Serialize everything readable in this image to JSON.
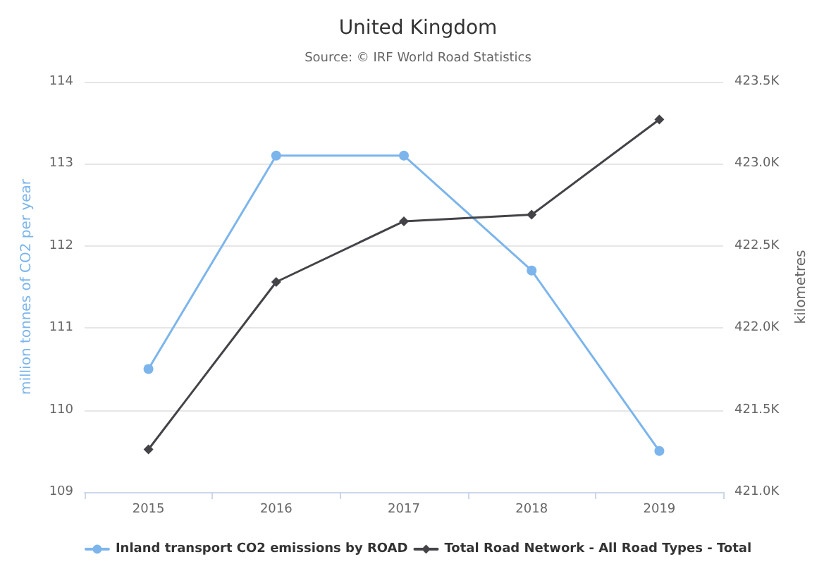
{
  "chart_data": {
    "type": "line",
    "title": "United Kingdom",
    "subtitle": "Source: © IRF World Road Statistics",
    "ylabel": "million tonnes of CO2 per year",
    "y2label": "kilometres",
    "categories": [
      "2015",
      "2016",
      "2017",
      "2018",
      "2019"
    ],
    "series": [
      {
        "name": "Inland transport CO2 emissions by ROAD",
        "color": "#7cb5ec",
        "marker": "circle",
        "values": [
          110.5,
          113.1,
          113.1,
          111.7,
          109.5
        ]
      },
      {
        "name": "Total Road Network - All Road Types - Total",
        "color": "#434348",
        "marker": "diamond",
        "axis": "y2",
        "values": [
          421260,
          422280,
          422650,
          422690,
          423270
        ]
      }
    ],
    "ylim": [
      109,
      114
    ],
    "yticks": [
      109,
      110,
      111,
      112,
      113,
      114
    ],
    "y2lim": [
      421000,
      423500
    ],
    "y2ticks": [
      {
        "value": 421000,
        "label": "421.0K"
      },
      {
        "value": 421500,
        "label": "421.5K"
      },
      {
        "value": 422000,
        "label": "422.0K"
      },
      {
        "value": 422500,
        "label": "422.5K"
      },
      {
        "value": 423000,
        "label": "423.0K"
      },
      {
        "value": 423500,
        "label": "423.5K"
      }
    ],
    "grid": "y",
    "legend": "bottom",
    "line_style": "solid"
  }
}
